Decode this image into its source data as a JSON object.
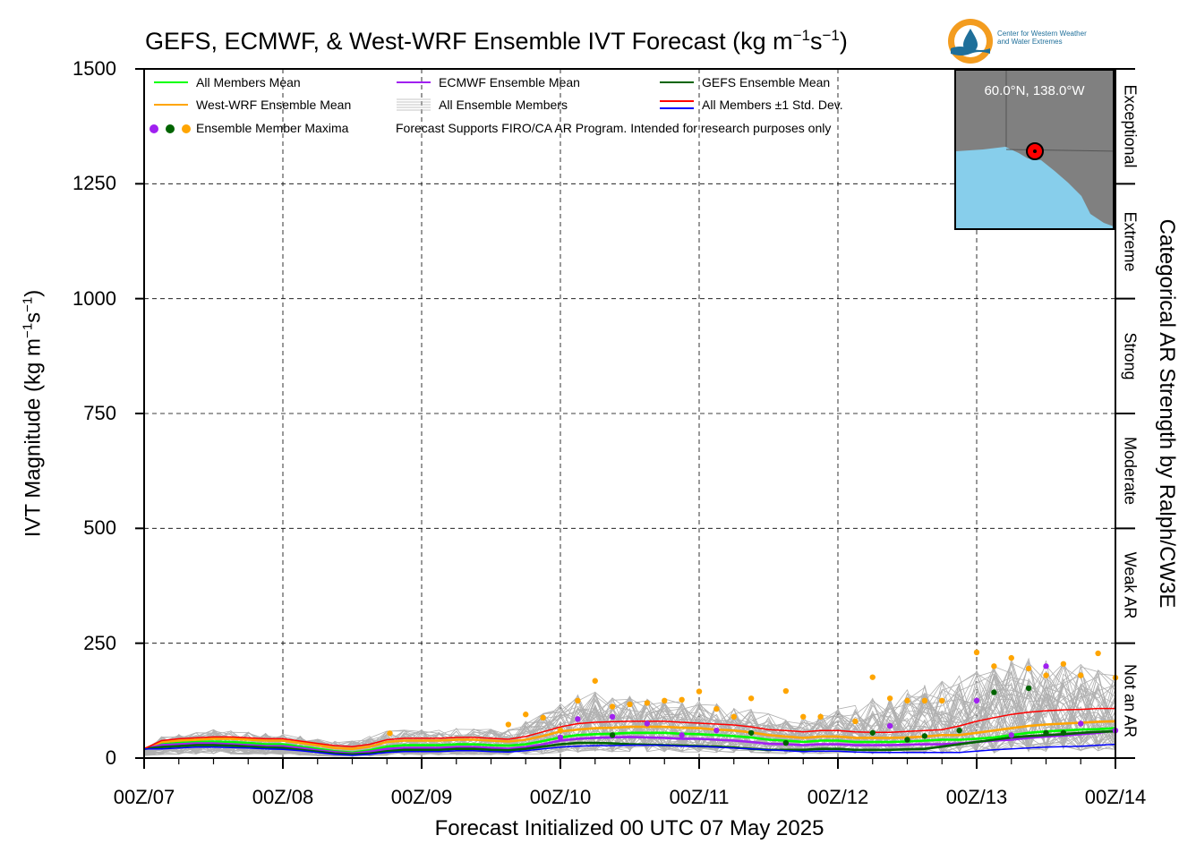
{
  "title": "GEFS, ECMWF, & West-WRF Ensemble IVT Forecast (kg m",
  "title_exp1": "−1",
  "title_mid": "s",
  "title_exp2": "−1",
  "title_end": ")",
  "logo": {
    "line1": "Center for Western Weather",
    "line2": "and Water Extremes"
  },
  "inset_label": "60.0°N, 138.0°W",
  "y_axis_label": "IVT Magnitude (kg m",
  "y_axis_exp1": "−1",
  "y_axis_mid": "s",
  "y_axis_exp2": "−1",
  "y_axis_end": ")",
  "right_axis_label": "Categorical AR Strength by Ralph/CW3E",
  "x_axis_label": "Forecast Initialized 00 UTC 07 May 2025",
  "legend": {
    "all_mean": "All Members Mean",
    "ecmwf_mean": "ECMWF Ensemble Mean",
    "gefs_mean": "GEFS Ensemble Mean",
    "wrf_mean": "West-WRF Ensemble Mean",
    "all_members": "All Ensemble Members",
    "std_dev": "All Members ±1 Std. Dev.",
    "maxima": "Ensemble Member Maxima",
    "disclaimer": "Forecast Supports FIRO/CA AR Program. Intended for research purposes only"
  },
  "categories": [
    "Not an AR",
    "Weak AR",
    "Moderate",
    "Strong",
    "Extreme",
    "Exceptional"
  ],
  "colors": {
    "all_mean": "#00ff00",
    "ecmwf_mean": "#a020f0",
    "gefs_mean": "#006400",
    "wrf_mean": "#ffa500",
    "members": "#b0b0b0",
    "std_upper": "#ff0000",
    "std_lower": "#0000ff"
  },
  "chart_data": {
    "type": "line",
    "xlabel": "Forecast Initialized 00 UTC 07 May 2025",
    "ylabel": "IVT Magnitude (kg m−1s−1)",
    "ylim": [
      0,
      1500
    ],
    "yticks": [
      0,
      250,
      500,
      750,
      1000,
      1250,
      1500
    ],
    "xlim": [
      0,
      168
    ],
    "xticks": [
      0,
      24,
      48,
      72,
      96,
      120,
      144,
      168
    ],
    "xtick_labels": [
      "00Z/07",
      "00Z/08",
      "00Z/09",
      "00Z/10",
      "00Z/11",
      "00Z/12",
      "00Z/13",
      "00Z/14"
    ],
    "category_bounds": [
      0,
      250,
      500,
      750,
      1000,
      1250,
      1500
    ],
    "grid": true,
    "legend_position": "top-left",
    "x_hours": [
      0,
      3,
      6,
      9,
      12,
      15,
      18,
      21,
      24,
      27,
      30,
      33,
      36,
      39,
      42,
      45,
      48,
      51,
      54,
      57,
      60,
      63,
      66,
      69,
      72,
      75,
      78,
      81,
      84,
      87,
      90,
      93,
      96,
      99,
      102,
      105,
      108,
      111,
      114,
      117,
      120,
      123,
      126,
      129,
      132,
      135,
      138,
      141,
      144,
      147,
      150,
      153,
      156,
      159,
      162,
      165,
      168
    ],
    "series": [
      {
        "name": "All Members Mean",
        "color": "#00ff00",
        "values": [
          20,
          30,
          33,
          35,
          36,
          35,
          33,
          30,
          30,
          25,
          20,
          15,
          12,
          17,
          25,
          28,
          28,
          28,
          30,
          30,
          28,
          27,
          30,
          37,
          45,
          50,
          52,
          53,
          55,
          55,
          55,
          53,
          52,
          50,
          48,
          45,
          40,
          38,
          35,
          38,
          38,
          35,
          35,
          35,
          36,
          38,
          40,
          40,
          42,
          45,
          50,
          55,
          58,
          60,
          62,
          63,
          65
        ]
      },
      {
        "name": "West-WRF Ensemble Mean",
        "color": "#ffa500",
        "values": [
          20,
          35,
          38,
          40,
          42,
          42,
          40,
          38,
          38,
          33,
          28,
          22,
          20,
          25,
          35,
          38,
          38,
          38,
          40,
          40,
          38,
          36,
          40,
          48,
          58,
          62,
          65,
          66,
          68,
          68,
          68,
          66,
          65,
          62,
          60,
          56,
          50,
          47,
          44,
          47,
          47,
          44,
          44,
          44,
          45,
          47,
          50,
          50,
          55,
          60,
          65,
          70,
          73,
          75,
          77,
          79,
          80
        ]
      },
      {
        "name": "ECMWF Ensemble Mean",
        "color": "#a020f0",
        "values": [
          20,
          28,
          30,
          32,
          32,
          30,
          28,
          26,
          26,
          22,
          17,
          13,
          10,
          14,
          20,
          22,
          22,
          22,
          24,
          24,
          22,
          20,
          24,
          30,
          38,
          42,
          44,
          45,
          46,
          45,
          44,
          42,
          42,
          40,
          38,
          35,
          31,
          30,
          28,
          30,
          30,
          28,
          28,
          28,
          29,
          30,
          30,
          32,
          35,
          38,
          40,
          44,
          47,
          49,
          52,
          55,
          60
        ]
      },
      {
        "name": "GEFS Ensemble Mean",
        "color": "#006400",
        "values": [
          20,
          24,
          26,
          28,
          28,
          27,
          25,
          23,
          22,
          18,
          14,
          10,
          8,
          10,
          15,
          18,
          18,
          18,
          20,
          20,
          18,
          17,
          20,
          25,
          30,
          33,
          33,
          32,
          30,
          29,
          28,
          27,
          26,
          25,
          23,
          20,
          18,
          18,
          18,
          20,
          20,
          18,
          18,
          18,
          19,
          20,
          25,
          30,
          35,
          40,
          45,
          48,
          50,
          52,
          55,
          57,
          58
        ]
      },
      {
        "name": "All Members ±1 Std. Dev.",
        "color": "#ff0000",
        "values": [
          20,
          38,
          42,
          44,
          46,
          46,
          44,
          42,
          42,
          37,
          32,
          27,
          25,
          30,
          40,
          43,
          43,
          43,
          45,
          45,
          43,
          41,
          47,
          57,
          68,
          75,
          78,
          79,
          80,
          80,
          80,
          78,
          76,
          74,
          72,
          68,
          62,
          60,
          57,
          60,
          60,
          57,
          56,
          56,
          58,
          60,
          62,
          70,
          80,
          88,
          95,
          100,
          103,
          105,
          106,
          108,
          108
        ]
      },
      {
        "name": "All Members ±1 Std. Dev.",
        "color": "#0000ff",
        "values": [
          20,
          20,
          22,
          24,
          24,
          23,
          22,
          20,
          19,
          16,
          12,
          8,
          6,
          8,
          12,
          14,
          14,
          14,
          16,
          16,
          14,
          13,
          16,
          20,
          24,
          26,
          27,
          27,
          28,
          28,
          28,
          26,
          26,
          24,
          22,
          20,
          18,
          16,
          14,
          15,
          15,
          13,
          12,
          12,
          12,
          12,
          12,
          12,
          15,
          18,
          20,
          22,
          24,
          25,
          26,
          28,
          30
        ]
      }
    ],
    "member_spread": {
      "upper": [
        22,
        48,
        55,
        58,
        62,
        60,
        57,
        55,
        53,
        48,
        42,
        38,
        38,
        48,
        60,
        62,
        62,
        62,
        65,
        68,
        66,
        65,
        80,
        100,
        120,
        140,
        145,
        140,
        135,
        130,
        130,
        128,
        125,
        120,
        115,
        110,
        100,
        95,
        90,
        100,
        110,
        120,
        130,
        140,
        150,
        160,
        170,
        180,
        200,
        210,
        220,
        220,
        215,
        210,
        205,
        200,
        190
      ]
    },
    "maxima": [
      {
        "x": 42.5,
        "y": 54,
        "color": "#ffa500"
      },
      {
        "x": 63,
        "y": 73,
        "color": "#ffa500"
      },
      {
        "x": 66,
        "y": 95,
        "color": "#ffa500"
      },
      {
        "x": 69,
        "y": 88,
        "color": "#ffa500"
      },
      {
        "x": 72,
        "y": 60,
        "color": "#ffa500"
      },
      {
        "x": 75,
        "y": 125,
        "color": "#ffa500"
      },
      {
        "x": 78,
        "y": 168,
        "color": "#ffa500"
      },
      {
        "x": 81,
        "y": 112,
        "color": "#ffa500"
      },
      {
        "x": 84,
        "y": 117,
        "color": "#ffa500"
      },
      {
        "x": 87,
        "y": 120,
        "color": "#ffa500"
      },
      {
        "x": 90,
        "y": 125,
        "color": "#ffa500"
      },
      {
        "x": 93,
        "y": 127,
        "color": "#ffa500"
      },
      {
        "x": 96,
        "y": 145,
        "color": "#ffa500"
      },
      {
        "x": 99,
        "y": 107,
        "color": "#ffa500"
      },
      {
        "x": 102,
        "y": 90,
        "color": "#ffa500"
      },
      {
        "x": 105,
        "y": 130,
        "color": "#ffa500"
      },
      {
        "x": 111,
        "y": 146,
        "color": "#ffa500"
      },
      {
        "x": 114,
        "y": 90,
        "color": "#ffa500"
      },
      {
        "x": 117,
        "y": 90,
        "color": "#ffa500"
      },
      {
        "x": 123,
        "y": 80,
        "color": "#ffa500"
      },
      {
        "x": 126,
        "y": 176,
        "color": "#ffa500"
      },
      {
        "x": 129,
        "y": 130,
        "color": "#ffa500"
      },
      {
        "x": 132,
        "y": 125,
        "color": "#ffa500"
      },
      {
        "x": 135,
        "y": 125,
        "color": "#ffa500"
      },
      {
        "x": 138,
        "y": 125,
        "color": "#ffa500"
      },
      {
        "x": 144,
        "y": 230,
        "color": "#ffa500"
      },
      {
        "x": 147,
        "y": 200,
        "color": "#ffa500"
      },
      {
        "x": 150,
        "y": 218,
        "color": "#ffa500"
      },
      {
        "x": 153,
        "y": 195,
        "color": "#ffa500"
      },
      {
        "x": 156,
        "y": 180,
        "color": "#ffa500"
      },
      {
        "x": 159,
        "y": 205,
        "color": "#ffa500"
      },
      {
        "x": 162,
        "y": 180,
        "color": "#ffa500"
      },
      {
        "x": 165,
        "y": 228,
        "color": "#ffa500"
      },
      {
        "x": 168,
        "y": 175,
        "color": "#ffa500"
      },
      {
        "x": 72,
        "y": 45,
        "color": "#a020f0"
      },
      {
        "x": 75,
        "y": 85,
        "color": "#a020f0"
      },
      {
        "x": 81,
        "y": 90,
        "color": "#a020f0"
      },
      {
        "x": 87,
        "y": 75,
        "color": "#a020f0"
      },
      {
        "x": 93,
        "y": 50,
        "color": "#a020f0"
      },
      {
        "x": 99,
        "y": 60,
        "color": "#a020f0"
      },
      {
        "x": 129,
        "y": 70,
        "color": "#a020f0"
      },
      {
        "x": 144,
        "y": 125,
        "color": "#a020f0"
      },
      {
        "x": 150,
        "y": 50,
        "color": "#a020f0"
      },
      {
        "x": 156,
        "y": 200,
        "color": "#a020f0"
      },
      {
        "x": 162,
        "y": 75,
        "color": "#a020f0"
      },
      {
        "x": 168,
        "y": 60,
        "color": "#a020f0"
      },
      {
        "x": 81,
        "y": 50,
        "color": "#006400"
      },
      {
        "x": 105,
        "y": 55,
        "color": "#006400"
      },
      {
        "x": 111,
        "y": 33,
        "color": "#006400"
      },
      {
        "x": 126,
        "y": 55,
        "color": "#006400"
      },
      {
        "x": 132,
        "y": 40,
        "color": "#006400"
      },
      {
        "x": 135,
        "y": 48,
        "color": "#006400"
      },
      {
        "x": 141,
        "y": 60,
        "color": "#006400"
      },
      {
        "x": 147,
        "y": 143,
        "color": "#006400"
      },
      {
        "x": 153,
        "y": 152,
        "color": "#006400"
      },
      {
        "x": 156,
        "y": 55,
        "color": "#006400"
      },
      {
        "x": 159,
        "y": 55,
        "color": "#006400"
      }
    ]
  }
}
